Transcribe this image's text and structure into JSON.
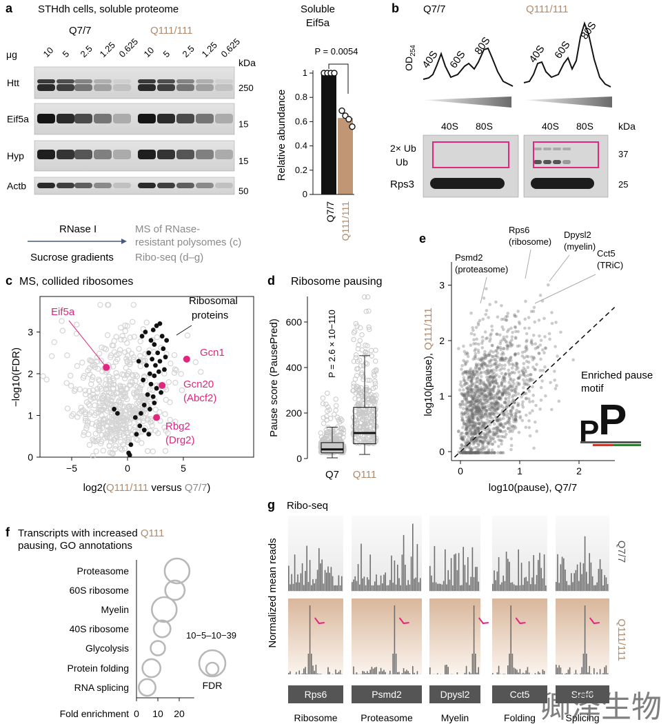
{
  "panels": {
    "a": {
      "letter": "a",
      "title": "STHdh cells, soluble proteome",
      "q7_label": "Q7/7",
      "q111_label": "Q111/111",
      "ug_label": "μg",
      "lane_amounts": [
        "10",
        "5",
        "2.5",
        "1.25",
        "0.625"
      ],
      "kda_label": "kDa",
      "blots": [
        {
          "name": "Htt",
          "kda": "250"
        },
        {
          "name": "Eif5a",
          "kda": "15"
        },
        {
          "name": "Hyp",
          "kda": "15"
        },
        {
          "name": "Actb",
          "kda": "50"
        }
      ],
      "bar_title_1": "Soluble",
      "bar_title_2": "Eif5a",
      "p_value": "P = 0.0054",
      "ylabel": "Relative abundance",
      "yticks": [
        "0",
        "0.2",
        "0.4",
        "0.6",
        "0.8",
        "1"
      ]
    },
    "b": {
      "letter": "b",
      "q7_label": "Q7/7",
      "q111_label": "Q111/111",
      "od_label": "OD254",
      "peaks": [
        "40S",
        "60S",
        "80S"
      ],
      "blot_peaks": [
        "40S",
        "80S"
      ],
      "kda_label": "kDa",
      "ub2_label": "2× Ub",
      "ub_label": "Ub",
      "rps3_label": "Rps3",
      "kda_37": "37",
      "kda_25": "25"
    },
    "flow": {
      "rnase": "RNase I",
      "sucrose": "Sucrose gradients",
      "ms_1": "MS of RNase-",
      "ms_2": "resistant polysomes (c)",
      "riboseq": "Ribo-seq (d–g)"
    },
    "c": {
      "letter": "c",
      "title": "MS, collided ribosomes",
      "ylabel": "−log10(FDR)",
      "xlabel_pre": "log2(",
      "xlabel_q111": "Q111/111",
      "xlabel_mid": " versus ",
      "xlabel_q7": "Q7/7",
      "xlabel_post": ")",
      "xticks": [
        "−5",
        "0",
        "5"
      ],
      "yticks": [
        "0",
        "1",
        "2",
        "3"
      ],
      "labels": {
        "eif5a": "Eif5a",
        "ribo_1": "Ribosomal",
        "ribo_2": "proteins",
        "gcn1": "Gcn1",
        "gcn20_1": "Gcn20",
        "gcn20_2": "(Abcf2)",
        "rbg2_1": "Rbg2",
        "rbg2_2": "(Drg2)"
      }
    },
    "d": {
      "letter": "d",
      "title": "Ribosome pausing",
      "ylabel": "Pause score (PausePred)",
      "p_value": "P = 2.6 × 10−110",
      "yticks": [
        "0",
        "200",
        "400",
        "600"
      ],
      "categories": [
        "Q7",
        "Q111"
      ]
    },
    "e": {
      "letter": "e",
      "xlabel": "log10(pause), Q7/7",
      "ylabel_pre": "log10(pause), ",
      "ylabel_q111": "Q111/111",
      "xticks": [
        "0",
        "1",
        "2"
      ],
      "yticks": [
        "0",
        "1",
        "2",
        "3"
      ],
      "annotations": {
        "psmd2_1": "Psmd2",
        "psmd2_2": "(proteasome)",
        "rps6_1": "Rps6",
        "rps6_2": "(ribosome)",
        "dpysl2_1": "Dpysl2",
        "dpysl2_2": "(myelin)",
        "cct5_1": "Cct5",
        "cct5_2": "(TRiC)"
      },
      "motif_1": "Enriched pause",
      "motif_2": "motif"
    },
    "f": {
      "letter": "f",
      "title_1": "Transcripts with increased ",
      "title_q111": "Q111",
      "title_2": "pausing, GO annotations",
      "xlabel": "Fold enrichment",
      "xticks": [
        "0",
        "10",
        "20"
      ],
      "fdr_range": "10−5–10−39",
      "fdr_label": "FDR"
    },
    "g": {
      "letter": "g",
      "title": "Ribo-seq",
      "ylabel": "Normalized mean reads",
      "q7_label": "Q7/7",
      "q111_label": "Q111/111",
      "genes": [
        "Rps6",
        "Psmd2",
        "Dpysl2",
        "Cct5",
        "Srsf6"
      ],
      "categories": [
        "Ribosome",
        "Proteasome",
        "Myelin",
        "Folding",
        "Splicing"
      ]
    }
  },
  "watermark": "卿泽生物",
  "colors": {
    "q111": "#b08a6a",
    "magenta": "#e0267e",
    "grey_text": "#8a8a8a",
    "bar_black": "#111111",
    "bar_tan": "#c09674"
  },
  "chart_data": [
    {
      "type": "bar",
      "title": "Soluble Eif5a",
      "categories": [
        "Q7/7",
        "Q111/111"
      ],
      "values": [
        1.0,
        0.63
      ],
      "points": [
        [
          1.0,
          1.0,
          1.0,
          1.0
        ],
        [
          0.69,
          0.66,
          0.62,
          0.57
        ]
      ],
      "ylabel": "Relative abundance",
      "ylim": [
        0,
        1.1
      ]
    },
    {
      "type": "scatter",
      "title": "MS, collided ribosomes",
      "xlabel": "log2(Q111/111 versus Q7/7)",
      "ylabel": "−log10(FDR)",
      "xlim": [
        -8,
        8
      ],
      "ylim": [
        0,
        3.7
      ],
      "highlighted": [
        {
          "name": "Eif5a",
          "x": -1.9,
          "y": 2.15
        },
        {
          "name": "Gcn1",
          "x": 5.3,
          "y": 2.35
        },
        {
          "name": "Gcn20 (Abcf2)",
          "x": 3.1,
          "y": 1.72
        },
        {
          "name": "Rbg2 (Drg2)",
          "x": 2.6,
          "y": 0.95
        }
      ],
      "ribosomal_proteins": [
        [
          1.3,
          2.9
        ],
        [
          1.6,
          3.0
        ],
        [
          2.1,
          2.8
        ],
        [
          2.3,
          3.05
        ],
        [
          2.6,
          3.15
        ],
        [
          2.9,
          3.2
        ],
        [
          3.1,
          2.9
        ],
        [
          2.4,
          2.7
        ],
        [
          2.7,
          2.5
        ],
        [
          3.2,
          2.6
        ],
        [
          1.9,
          2.5
        ],
        [
          2.2,
          2.35
        ],
        [
          2.5,
          2.2
        ],
        [
          2.9,
          2.3
        ],
        [
          3.4,
          2.4
        ],
        [
          1.7,
          2.2
        ],
        [
          2.0,
          2.0
        ],
        [
          2.4,
          1.95
        ],
        [
          2.8,
          2.05
        ],
        [
          3.3,
          2.1
        ],
        [
          1.4,
          1.85
        ],
        [
          2.1,
          1.75
        ],
        [
          2.6,
          1.65
        ],
        [
          3.0,
          1.55
        ],
        [
          1.8,
          1.5
        ],
        [
          2.3,
          1.45
        ],
        [
          1.5,
          1.25
        ],
        [
          2.0,
          1.15
        ],
        [
          2.4,
          1.3
        ],
        [
          1.2,
          1.05
        ],
        [
          0.7,
          0.95
        ],
        [
          1.1,
          0.75
        ],
        [
          1.5,
          0.65
        ],
        [
          0.8,
          0.55
        ],
        [
          1.9,
          0.55
        ],
        [
          0.3,
          0.3
        ],
        [
          0.1,
          0.1
        ],
        [
          0.2,
          0.05
        ],
        [
          -1.2,
          1.15
        ],
        [
          -0.9,
          1.05
        ],
        [
          3.5,
          2.8
        ],
        [
          1.0,
          2.3
        ]
      ]
    },
    {
      "type": "box",
      "title": "Ribosome pausing",
      "ylabel": "Pause score (PausePred)",
      "categories": [
        "Q7",
        "Q111"
      ],
      "boxes": [
        {
          "name": "Q7",
          "whisker_low": 3,
          "q1": 25,
          "median": 40,
          "q3": 70,
          "whisker_high": 138
        },
        {
          "name": "Q111",
          "whisker_low": 18,
          "q1": 65,
          "median": 112,
          "q3": 225,
          "whisker_high": 452
        }
      ],
      "ylim": [
        0,
        720
      ]
    },
    {
      "type": "scatter",
      "xlabel": "log10(pause), Q7/7",
      "ylabel": "log10(pause), Q111/111",
      "xlim": [
        -0.1,
        2.6
      ],
      "ylim": [
        -0.05,
        3.3
      ],
      "diagonal": "y = x (dashed)",
      "annotated": [
        {
          "name": "Psmd2 (proteasome)",
          "x": 0.3,
          "y": 2.7
        },
        {
          "name": "Rps6 (ribosome)",
          "x": 1.0,
          "y": 3.1
        },
        {
          "name": "Dpysl2 (myelin)",
          "x": 1.45,
          "y": 3.1
        },
        {
          "name": "Cct5 (TRiC)",
          "x": 1.25,
          "y": 2.65
        }
      ]
    },
    {
      "type": "bubble",
      "title": "Transcripts with increased Q111 pausing, GO annotations",
      "xlabel": "Fold enrichment",
      "categories": [
        "Proteasome",
        "60S ribosome",
        "Myelin",
        "40S ribosome",
        "Glycolysis",
        "Protein folding",
        "RNA splicing"
      ],
      "values": [
        19,
        18,
        13,
        12,
        10,
        7,
        5
      ],
      "sizes": [
        1.0,
        0.7,
        1.0,
        0.55,
        0.42,
        0.62,
        0.55
      ],
      "xlim": [
        0,
        27
      ]
    },
    {
      "type": "bar",
      "title": "Ribo-seq",
      "ylabel": "Normalized mean reads",
      "series": [
        {
          "name": "Q7/7"
        },
        {
          "name": "Q111/111"
        }
      ],
      "categories": [
        "Rps6",
        "Psmd2",
        "Dpysl2",
        "Cct5",
        "Srsf6"
      ]
    }
  ]
}
